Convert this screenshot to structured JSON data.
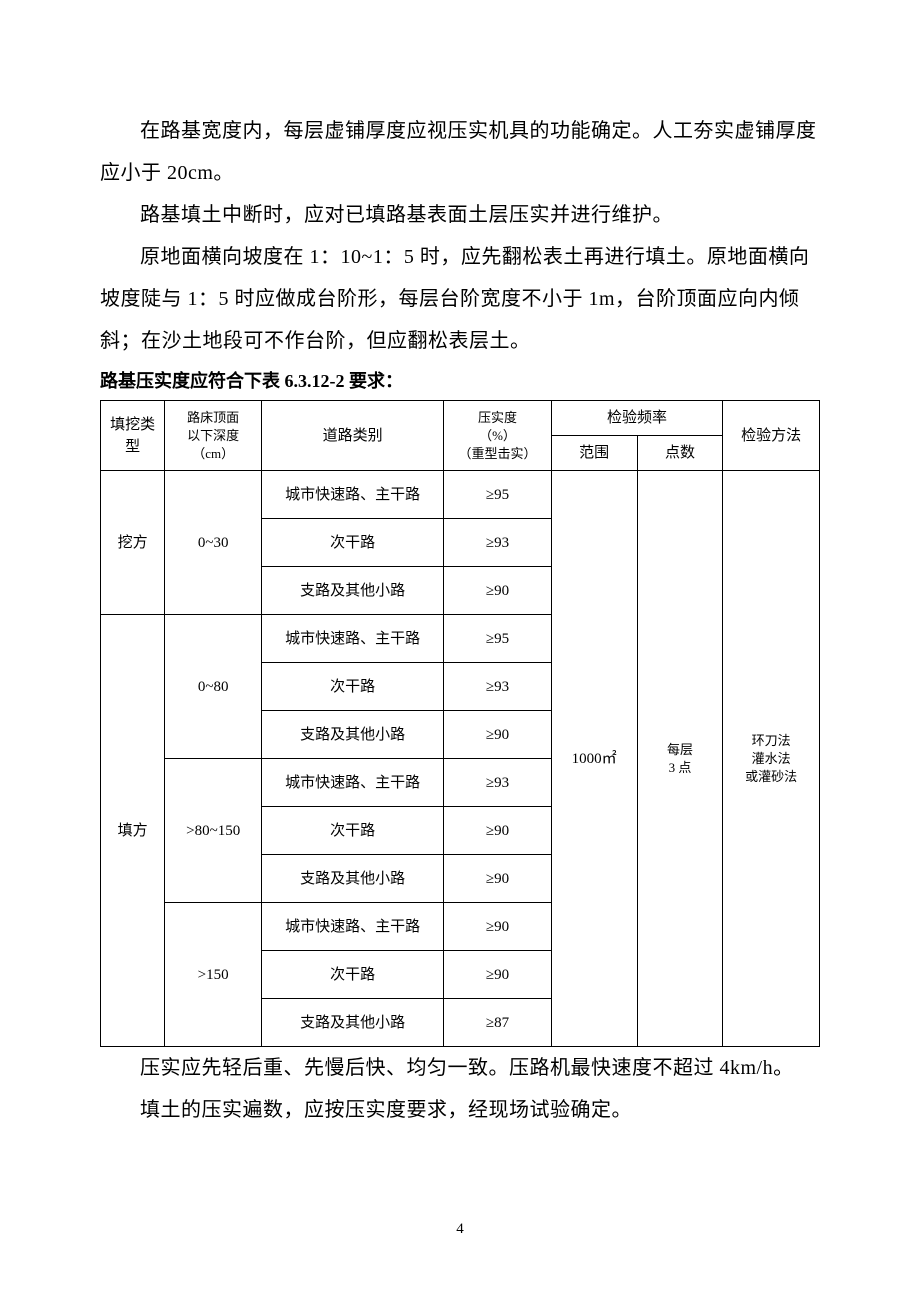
{
  "paragraphs": {
    "p1": "在路基宽度内，每层虚铺厚度应视压实机具的功能确定。人工夯实虚铺厚度应小于 20cm。",
    "p2": "路基填土中断时，应对已填路基表面土层压实并进行维护。",
    "p3": "原地面横向坡度在 1：10~1：5 时，应先翻松表土再进行填土。原地面横向坡度陡与 1：5 时应做成台阶形，每层台阶宽度不小于 1m，台阶顶面应向内倾斜；在沙土地段可不作台阶，但应翻松表层土。",
    "caption": "路基压实度应符合下表 6.3.12-2 要求：",
    "p4": "压实应先轻后重、先慢后快、均匀一致。压路机最快速度不超过 4km/h。",
    "p5": "填土的压实遍数，应按压实度要求，经现场试验确定。"
  },
  "table": {
    "head": {
      "fill_type": "填挖类型",
      "depth_l1": "路床顶面",
      "depth_l2": "以下深度",
      "depth_l3": "（cm）",
      "road_cat": "道路类别",
      "comp_l1": "压实度",
      "comp_l2": "（%）",
      "comp_l3": "（重型击实）",
      "freq": "检验频率",
      "range": "范围",
      "points": "点数",
      "method": "检验方法"
    },
    "types": {
      "cut": "挖方",
      "fill": "填方"
    },
    "depths": {
      "d1": "0~30",
      "d2": "0~80",
      "d3": ">80~150",
      "d4": ">150"
    },
    "roads": {
      "r1": "城市快速路、主干路",
      "r2": "次干路",
      "r3": "支路及其他小路"
    },
    "vals": {
      "cut_d1_r1": "≥95",
      "cut_d1_r2": "≥93",
      "cut_d1_r3": "≥90",
      "fill_d2_r1": "≥95",
      "fill_d2_r2": "≥93",
      "fill_d2_r3": "≥90",
      "fill_d3_r1": "≥93",
      "fill_d3_r2": "≥90",
      "fill_d3_r3": "≥90",
      "fill_d4_r1": "≥90",
      "fill_d4_r2": "≥90",
      "fill_d4_r3": "≥87"
    },
    "range_val": "1000㎡",
    "points_l1": "每层",
    "points_l2": "3 点",
    "method_l1": "环刀法",
    "method_l2": "灌水法",
    "method_l3": "或灌砂法"
  },
  "page_number": "4"
}
